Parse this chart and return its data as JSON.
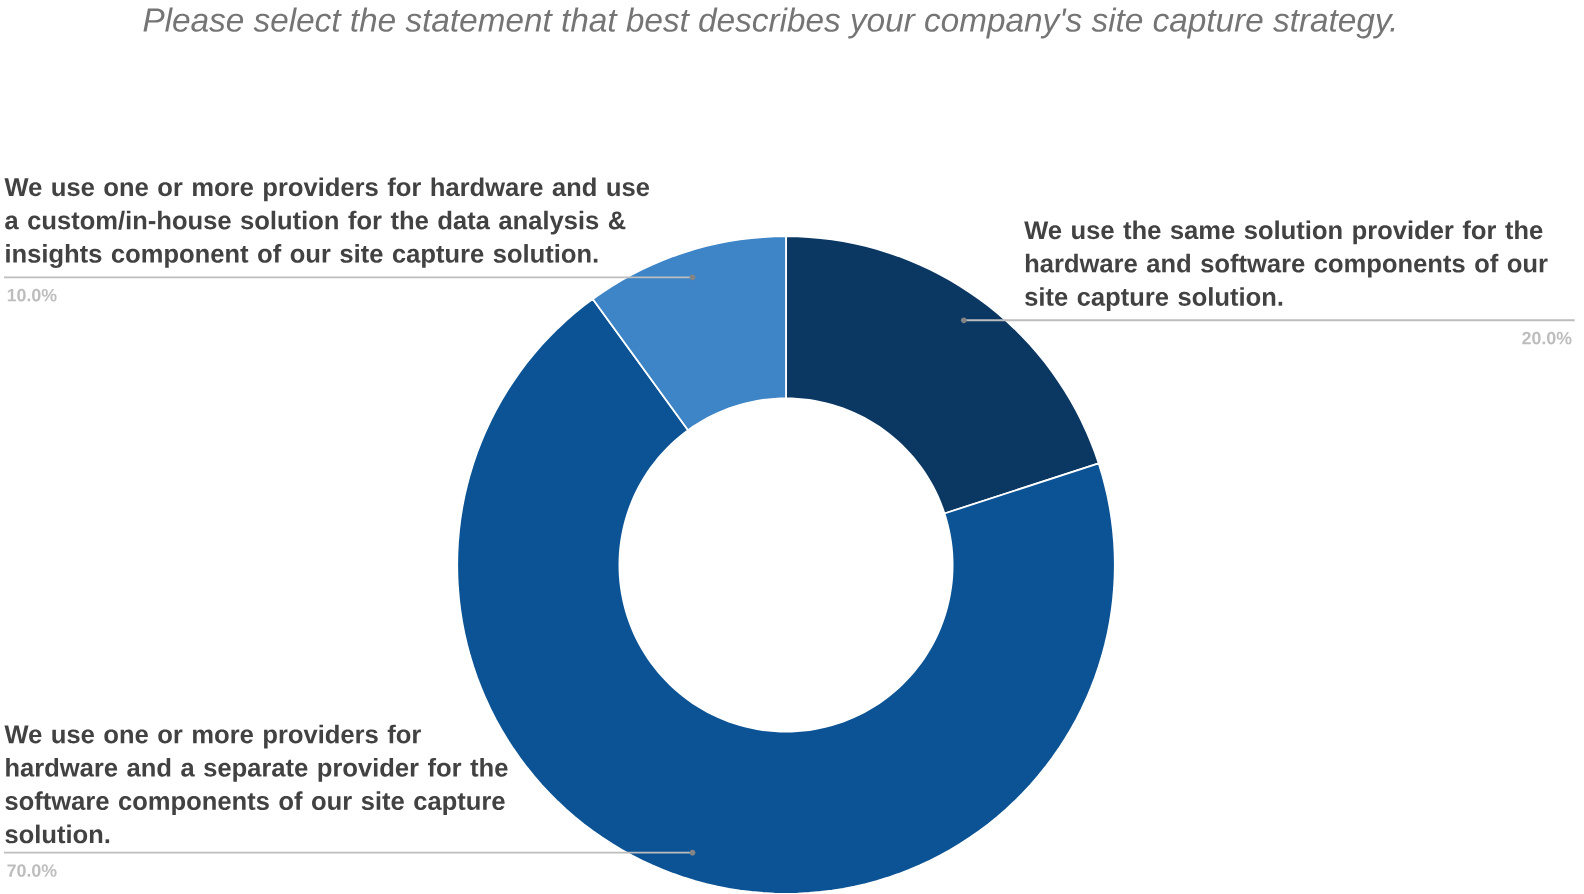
{
  "chart_data": {
    "type": "donut",
    "title": "*Please select the statement that best describes your company's site capture strategy.*",
    "categories": [
      "We use the same solution provider for the hardware and software components of our site capture solution.",
      "We use one or more providers for hardware and a separate provider for the software components of our site capture solution.",
      "We use one or more providers for hardware and use a custom/in-house solution for the data analysis & insights component of our site capture solution."
    ],
    "values": [
      20,
      70,
      10
    ],
    "colors": [
      "#0b3763",
      "#0b5394",
      "#3d85c6"
    ],
    "value_labels": [
      "20.0%",
      "70.0%",
      "10.0%"
    ]
  }
}
